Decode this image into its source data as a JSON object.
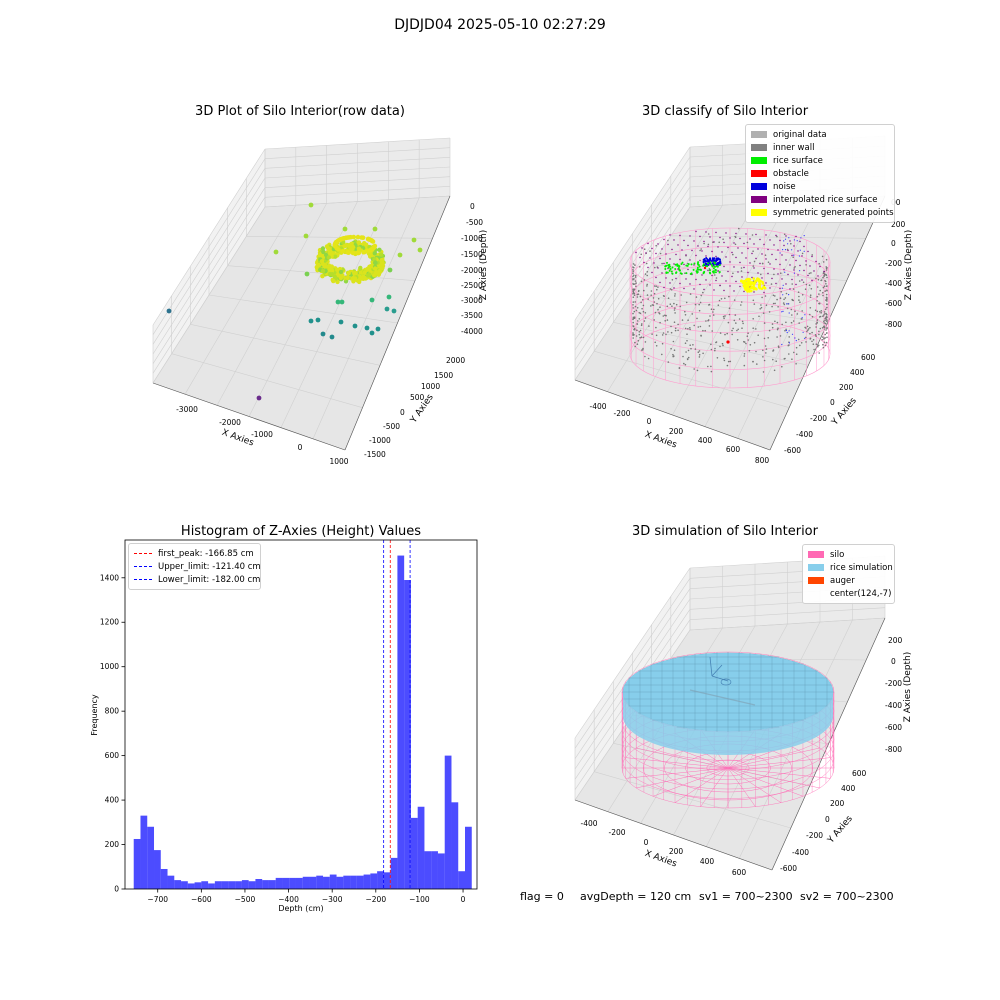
{
  "suptitle": "DJDJD04 2025-05-10 02:27:29",
  "chart_data": [
    {
      "type": "scatter",
      "subtype": "3d",
      "title": "3D Plot of Silo Interior(row data)",
      "xlabel": "X Axies",
      "ylabel": "Y Axies",
      "zlabel": "Z Axies (Depth)",
      "x_ticks": [
        "-3000",
        "-2000",
        "-1000",
        "0",
        "1000"
      ],
      "y_ticks": [
        "-1500",
        "-1000",
        "-500",
        "0",
        "500",
        "1000",
        "1500",
        "2000"
      ],
      "z_ticks": [
        "0",
        "-500",
        "-1000",
        "-1500",
        "-2000",
        "-2500",
        "-3000",
        "-3500",
        "-4000"
      ],
      "colormap": "viridis",
      "grid": true
    },
    {
      "type": "scatter",
      "subtype": "3d",
      "title": "3D classify of Silo Interior",
      "xlabel": "X Axies",
      "ylabel": "Y Axies",
      "zlabel": "Z Axies (Depth)",
      "x_ticks": [
        "-400",
        "-200",
        "0",
        "200",
        "400",
        "600",
        "800"
      ],
      "y_ticks": [
        "-600",
        "-400",
        "-200",
        "0",
        "200",
        "400",
        "600"
      ],
      "z_ticks": [
        "200",
        "0",
        "-200",
        "-400",
        "-600",
        "-800"
      ],
      "z_top_tick_partial": "00",
      "legend_position": "upper right",
      "grid": true,
      "legend": [
        {
          "label": "original data",
          "color": "#b0b0b0"
        },
        {
          "label": "inner wall",
          "color": "#808080"
        },
        {
          "label": "rice surface",
          "color": "#00ee00"
        },
        {
          "label": "obstacle",
          "color": "#ff0000"
        },
        {
          "label": "noise",
          "color": "#0000dd"
        },
        {
          "label": "interpolated rice surface",
          "color": "#800080"
        },
        {
          "label": "symmetric generated points",
          "color": "#ffff00"
        }
      ]
    },
    {
      "type": "bar",
      "subtype": "histogram",
      "title": "Histogram of Z-Axies (Height) Values",
      "xlabel": "Depth (cm)",
      "ylabel": "Frequency",
      "xlim": [
        -775,
        32
      ],
      "ylim": [
        0,
        1570
      ],
      "x_ticks": [
        -700,
        -600,
        -500,
        -400,
        -300,
        -200,
        -100,
        0
      ],
      "y_ticks": [
        0,
        200,
        400,
        600,
        800,
        1000,
        1200,
        1400
      ],
      "bar_color": "#0000ff",
      "bar_opacity": 0.7,
      "bin_width": 15.5,
      "bin_start": -755,
      "values": [
        225,
        330,
        280,
        175,
        90,
        60,
        40,
        35,
        25,
        30,
        35,
        25,
        35,
        35,
        35,
        35,
        40,
        35,
        45,
        40,
        40,
        50,
        50,
        50,
        50,
        55,
        55,
        60,
        55,
        65,
        55,
        60,
        60,
        60,
        65,
        70,
        80,
        75,
        140,
        1500,
        1390,
        320,
        370,
        170,
        170,
        160,
        600,
        390,
        80,
        280
      ],
      "legend_position": "upper left",
      "grid": false,
      "vlines": [
        {
          "label": "first_peak: -166.85 cm",
          "x": -166.85,
          "color": "#ff0000"
        },
        {
          "label": "Upper_limit: -121.40 cm",
          "x": -121.4,
          "color": "#0000ff"
        },
        {
          "label": "Lower_limit: -182.00 cm",
          "x": -182.0,
          "color": "#0000ff"
        }
      ]
    },
    {
      "type": "area",
      "subtype": "3d-surface",
      "title": "3D simulation of Silo Interior",
      "xlabel": "X Axies",
      "ylabel": "Y Axies",
      "zlabel": "Z Axies (Depth)",
      "x_ticks": [
        "-400",
        "-200",
        "0",
        "200",
        "400",
        "600"
      ],
      "y_ticks": [
        "-600",
        "-400",
        "-200",
        "0",
        "200",
        "400",
        "600"
      ],
      "z_ticks": [
        "200",
        "0",
        "-200",
        "-400",
        "-600",
        "-800"
      ],
      "legend_position": "upper right",
      "grid": true,
      "legend": [
        {
          "label": "silo",
          "color": "#ff69b4"
        },
        {
          "label": "rice simulation",
          "color": "#87ceeb"
        },
        {
          "label": "auger",
          "color": "#ff4500"
        },
        {
          "label": "center(124,-7)",
          "color": ""
        }
      ]
    }
  ],
  "status": {
    "flag": "flag = 0",
    "avg_depth": "avgDepth = 120 cm",
    "sv1": "sv1 = 700~2300",
    "sv2": "sv2 = 700~2300"
  }
}
